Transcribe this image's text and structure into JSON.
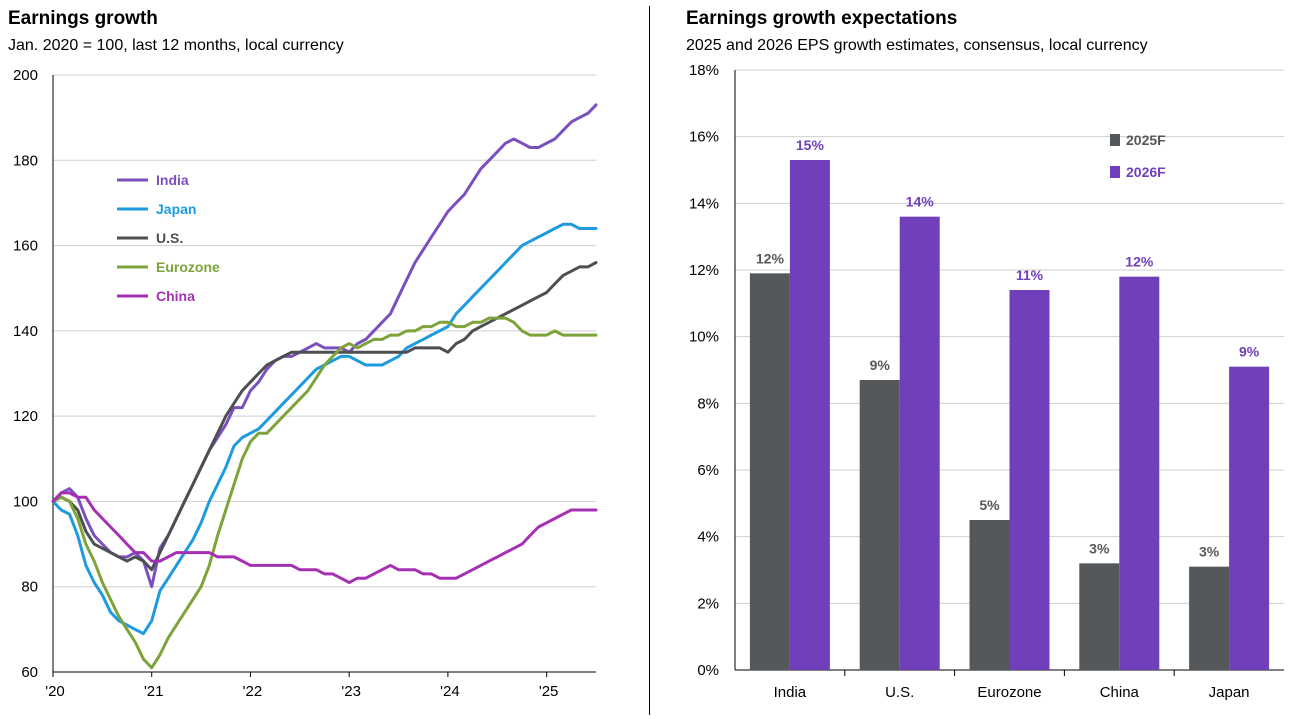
{
  "left": {
    "title": "Earnings growth",
    "subtitle": "Jan. 2020 = 100, last 12 months, local currency"
  },
  "right": {
    "title": "Earnings growth expectations",
    "subtitle": "2025 and 2026 EPS growth estimates, consensus, local currency"
  },
  "chart_data": [
    {
      "type": "line",
      "title": "Earnings growth",
      "subtitle": "Jan. 2020 = 100, last 12 months, local currency",
      "ylim": [
        60,
        200
      ],
      "yticks": [
        60,
        80,
        100,
        120,
        140,
        160,
        180,
        200
      ],
      "xlim": [
        2020.0,
        2025.5
      ],
      "xticks": [
        {
          "value": 2020,
          "label": "'20"
        },
        {
          "value": 2021,
          "label": "'21"
        },
        {
          "value": 2022,
          "label": "'22"
        },
        {
          "value": 2023,
          "label": "'23"
        },
        {
          "value": 2024,
          "label": "'24"
        },
        {
          "value": 2025,
          "label": "'25"
        }
      ],
      "grid": "horizontal",
      "legend": "upper-left",
      "colors": {
        "India": "#7b4fbf",
        "Japan": "#1e9be0",
        "U.S.": "#4d4f53",
        "Eurozone": "#7da33a",
        "China": "#a530b3"
      },
      "series": [
        {
          "name": "India",
          "x": [
            2020.0,
            2020.083,
            2020.167,
            2020.25,
            2020.333,
            2020.417,
            2020.5,
            2020.583,
            2020.667,
            2020.75,
            2020.833,
            2020.917,
            2021.0,
            2021.083,
            2021.167,
            2021.25,
            2021.333,
            2021.417,
            2021.5,
            2021.583,
            2021.667,
            2021.75,
            2021.833,
            2021.917,
            2022.0,
            2022.083,
            2022.167,
            2022.25,
            2022.333,
            2022.417,
            2022.5,
            2022.583,
            2022.667,
            2022.75,
            2022.833,
            2022.917,
            2023.0,
            2023.083,
            2023.167,
            2023.25,
            2023.333,
            2023.417,
            2023.5,
            2023.583,
            2023.667,
            2023.75,
            2023.833,
            2023.917,
            2024.0,
            2024.083,
            2024.167,
            2024.25,
            2024.333,
            2024.417,
            2024.5,
            2024.583,
            2024.667,
            2024.75,
            2024.833,
            2024.917,
            2025.0,
            2025.083,
            2025.167,
            2025.25,
            2025.333,
            2025.417,
            2025.5
          ],
          "values": [
            100,
            102,
            103,
            101,
            96,
            92,
            90,
            88,
            87,
            87,
            88,
            86,
            80,
            89,
            92,
            96,
            100,
            104,
            108,
            112,
            115,
            118,
            122,
            122,
            126,
            128,
            131,
            133,
            134,
            134,
            135,
            136,
            137,
            136,
            136,
            136,
            135,
            137,
            138,
            140,
            142,
            144,
            148,
            152,
            156,
            159,
            162,
            165,
            168,
            170,
            172,
            175,
            178,
            180,
            182,
            184,
            185,
            184,
            183,
            183,
            184,
            185,
            187,
            189,
            190,
            191,
            193
          ]
        },
        {
          "name": "Japan",
          "x": [
            2020.0,
            2020.083,
            2020.167,
            2020.25,
            2020.333,
            2020.417,
            2020.5,
            2020.583,
            2020.667,
            2020.75,
            2020.833,
            2020.917,
            2021.0,
            2021.083,
            2021.167,
            2021.25,
            2021.333,
            2021.417,
            2021.5,
            2021.583,
            2021.667,
            2021.75,
            2021.833,
            2021.917,
            2022.0,
            2022.083,
            2022.167,
            2022.25,
            2022.333,
            2022.417,
            2022.5,
            2022.583,
            2022.667,
            2022.75,
            2022.833,
            2022.917,
            2023.0,
            2023.083,
            2023.167,
            2023.25,
            2023.333,
            2023.417,
            2023.5,
            2023.583,
            2023.667,
            2023.75,
            2023.833,
            2023.917,
            2024.0,
            2024.083,
            2024.167,
            2024.25,
            2024.333,
            2024.417,
            2024.5,
            2024.583,
            2024.667,
            2024.75,
            2024.833,
            2024.917,
            2025.0,
            2025.083,
            2025.167,
            2025.25,
            2025.333,
            2025.417,
            2025.5
          ],
          "values": [
            100,
            98,
            97,
            92,
            85,
            81,
            78,
            74,
            72,
            71,
            70,
            69,
            72,
            79,
            82,
            85,
            88,
            91,
            95,
            100,
            104,
            108,
            113,
            115,
            116,
            117,
            119,
            121,
            123,
            125,
            127,
            129,
            131,
            132,
            133,
            134,
            134,
            133,
            132,
            132,
            132,
            133,
            134,
            136,
            137,
            138,
            139,
            140,
            141,
            144,
            146,
            148,
            150,
            152,
            154,
            156,
            158,
            160,
            161,
            162,
            163,
            164,
            165,
            165,
            164,
            164,
            164
          ]
        },
        {
          "name": "U.S.",
          "x": [
            2020.0,
            2020.083,
            2020.167,
            2020.25,
            2020.333,
            2020.417,
            2020.5,
            2020.583,
            2020.667,
            2020.75,
            2020.833,
            2020.917,
            2021.0,
            2021.083,
            2021.167,
            2021.25,
            2021.333,
            2021.417,
            2021.5,
            2021.583,
            2021.667,
            2021.75,
            2021.833,
            2021.917,
            2022.0,
            2022.083,
            2022.167,
            2022.25,
            2022.333,
            2022.417,
            2022.5,
            2022.583,
            2022.667,
            2022.75,
            2022.833,
            2022.917,
            2023.0,
            2023.083,
            2023.167,
            2023.25,
            2023.333,
            2023.417,
            2023.5,
            2023.583,
            2023.667,
            2023.75,
            2023.833,
            2023.917,
            2024.0,
            2024.083,
            2024.167,
            2024.25,
            2024.333,
            2024.417,
            2024.5,
            2024.583,
            2024.667,
            2024.75,
            2024.833,
            2024.917,
            2025.0,
            2025.083,
            2025.167,
            2025.25,
            2025.333,
            2025.417,
            2025.5
          ],
          "values": [
            100,
            101,
            100,
            98,
            93,
            90,
            89,
            88,
            87,
            86,
            87,
            86,
            84,
            88,
            92,
            96,
            100,
            104,
            108,
            112,
            116,
            120,
            123,
            126,
            128,
            130,
            132,
            133,
            134,
            135,
            135,
            135,
            135,
            135,
            135,
            135,
            135,
            135,
            135,
            135,
            135,
            135,
            135,
            135,
            136,
            136,
            136,
            136,
            135,
            137,
            138,
            140,
            141,
            142,
            143,
            144,
            145,
            146,
            147,
            148,
            149,
            151,
            153,
            154,
            155,
            155,
            156
          ]
        },
        {
          "name": "Eurozone",
          "x": [
            2020.0,
            2020.083,
            2020.167,
            2020.25,
            2020.333,
            2020.417,
            2020.5,
            2020.583,
            2020.667,
            2020.75,
            2020.833,
            2020.917,
            2021.0,
            2021.083,
            2021.167,
            2021.25,
            2021.333,
            2021.417,
            2021.5,
            2021.583,
            2021.667,
            2021.75,
            2021.833,
            2021.917,
            2022.0,
            2022.083,
            2022.167,
            2022.25,
            2022.333,
            2022.417,
            2022.5,
            2022.583,
            2022.667,
            2022.75,
            2022.833,
            2022.917,
            2023.0,
            2023.083,
            2023.167,
            2023.25,
            2023.333,
            2023.417,
            2023.5,
            2023.583,
            2023.667,
            2023.75,
            2023.833,
            2023.917,
            2024.0,
            2024.083,
            2024.167,
            2024.25,
            2024.333,
            2024.417,
            2024.5,
            2024.583,
            2024.667,
            2024.75,
            2024.833,
            2024.917,
            2025.0,
            2025.083,
            2025.167,
            2025.25,
            2025.333,
            2025.417,
            2025.5
          ],
          "values": [
            100,
            101,
            100,
            96,
            90,
            86,
            81,
            77,
            73,
            70,
            67,
            63,
            61,
            64,
            68,
            71,
            74,
            77,
            80,
            85,
            92,
            98,
            104,
            110,
            114,
            116,
            116,
            118,
            120,
            122,
            124,
            126,
            129,
            132,
            134,
            136,
            137,
            136,
            137,
            138,
            138,
            139,
            139,
            140,
            140,
            141,
            141,
            142,
            142,
            141,
            141,
            142,
            142,
            143,
            143,
            143,
            142,
            140,
            139,
            139,
            139,
            140,
            139,
            139,
            139,
            139,
            139
          ]
        },
        {
          "name": "China",
          "x": [
            2020.0,
            2020.083,
            2020.167,
            2020.25,
            2020.333,
            2020.417,
            2020.5,
            2020.583,
            2020.667,
            2020.75,
            2020.833,
            2020.917,
            2021.0,
            2021.083,
            2021.167,
            2021.25,
            2021.333,
            2021.417,
            2021.5,
            2021.583,
            2021.667,
            2021.75,
            2021.833,
            2021.917,
            2022.0,
            2022.083,
            2022.167,
            2022.25,
            2022.333,
            2022.417,
            2022.5,
            2022.583,
            2022.667,
            2022.75,
            2022.833,
            2022.917,
            2023.0,
            2023.083,
            2023.167,
            2023.25,
            2023.333,
            2023.417,
            2023.5,
            2023.583,
            2023.667,
            2023.75,
            2023.833,
            2023.917,
            2024.0,
            2024.083,
            2024.167,
            2024.25,
            2024.333,
            2024.417,
            2024.5,
            2024.583,
            2024.667,
            2024.75,
            2024.833,
            2024.917,
            2025.0,
            2025.083,
            2025.167,
            2025.25,
            2025.333,
            2025.417,
            2025.5
          ],
          "values": [
            100,
            102,
            102,
            101,
            101,
            98,
            96,
            94,
            92,
            90,
            88,
            88,
            86,
            86,
            87,
            88,
            88,
            88,
            88,
            88,
            87,
            87,
            87,
            86,
            85,
            85,
            85,
            85,
            85,
            85,
            84,
            84,
            84,
            83,
            83,
            82,
            81,
            82,
            82,
            83,
            84,
            85,
            84,
            84,
            84,
            83,
            83,
            82,
            82,
            82,
            83,
            84,
            85,
            86,
            87,
            88,
            89,
            90,
            92,
            94,
            95,
            96,
            97,
            98,
            98,
            98,
            98
          ]
        }
      ]
    },
    {
      "type": "bar",
      "title": "Earnings growth expectations",
      "subtitle": "2025 and 2026 EPS growth estimates, consensus, local currency",
      "categories": [
        "India",
        "U.S.",
        "Eurozone",
        "China",
        "Japan"
      ],
      "ylim": [
        0,
        18
      ],
      "yticks": [
        0,
        2,
        4,
        6,
        8,
        10,
        12,
        14,
        16,
        18
      ],
      "ytick_suffix": "%",
      "grid": "horizontal",
      "legend": "top-center",
      "series": [
        {
          "name": "2025F",
          "color": "#55585b",
          "values": [
            11.9,
            8.7,
            4.5,
            3.2,
            3.1
          ],
          "labels": [
            "12%",
            "9%",
            "5%",
            "3%",
            "3%"
          ],
          "label_color": "#55585b"
        },
        {
          "name": "2026F",
          "color": "#7040bb",
          "values": [
            15.3,
            13.6,
            11.4,
            11.8,
            9.1
          ],
          "labels": [
            "15%",
            "14%",
            "11%",
            "12%",
            "9%"
          ],
          "label_color": "#7040bb"
        }
      ]
    }
  ]
}
